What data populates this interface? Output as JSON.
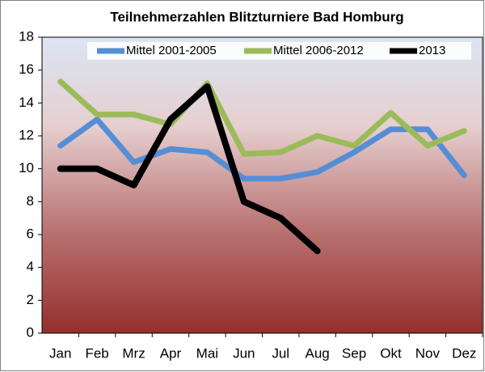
{
  "chart_data": {
    "type": "line",
    "title": "Teilnehmerzahlen Blitzturniere Bad Homburg",
    "categories": [
      "Jan",
      "Feb",
      "Mrz",
      "Apr",
      "Mai",
      "Jun",
      "Jul",
      "Aug",
      "Sep",
      "Okt",
      "Nov",
      "Dez"
    ],
    "series": [
      {
        "name": "Mittel 2001-2005",
        "color": "#558ed5",
        "values": [
          11.4,
          13,
          10.4,
          11.2,
          11,
          9.4,
          9.4,
          9.8,
          11,
          12.4,
          12.4,
          9.6
        ]
      },
      {
        "name": "Mittel 2006-2012",
        "color": "#9bbb59",
        "values": [
          15.3,
          13.3,
          13.3,
          12.7,
          15.2,
          10.9,
          11,
          12,
          11.4,
          13.4,
          11.4,
          12.3
        ]
      },
      {
        "name": "2013",
        "color": "#000000",
        "values": [
          10,
          10,
          9,
          13,
          15,
          8,
          7,
          5,
          null,
          null,
          null,
          null
        ]
      }
    ],
    "ylim": [
      0,
      18
    ],
    "yticks": [
      0,
      2,
      4,
      6,
      8,
      10,
      12,
      14,
      16,
      18
    ],
    "legend": "upper right"
  }
}
